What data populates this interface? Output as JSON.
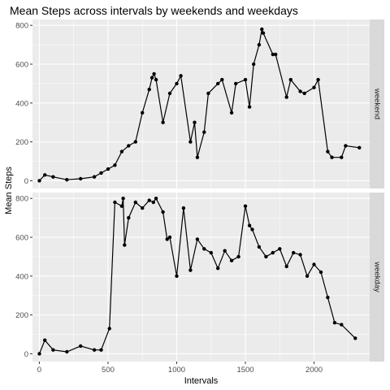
{
  "chart_data": {
    "type": "line",
    "title": "Mean Steps across intervals by weekends and weekdays",
    "xlabel": "Intervals",
    "ylabel": "Mean Steps",
    "xlim": [
      -50,
      2405
    ],
    "ylim": [
      -40,
      830
    ],
    "x_ticks": [
      0,
      500,
      1000,
      1500,
      2000
    ],
    "y_ticks": [
      0,
      200,
      400,
      600,
      800
    ],
    "grid": true,
    "markers": "points",
    "line_color": "#000000",
    "panel_background": "#ebebeb",
    "facet_strip_background": "#d9d9d9",
    "facets": [
      {
        "label": "weekend",
        "x": [
          0,
          40,
          100,
          200,
          300,
          400,
          450,
          500,
          550,
          600,
          650,
          700,
          750,
          800,
          820,
          835,
          850,
          900,
          950,
          1000,
          1030,
          1100,
          1130,
          1150,
          1200,
          1230,
          1300,
          1330,
          1400,
          1430,
          1500,
          1530,
          1560,
          1600,
          1620,
          1630,
          1700,
          1720,
          1800,
          1830,
          1900,
          1930,
          2000,
          2030,
          2100,
          2130,
          2200,
          2230,
          2330
        ],
        "values": [
          0,
          30,
          20,
          5,
          10,
          20,
          40,
          60,
          80,
          150,
          180,
          200,
          350,
          470,
          530,
          550,
          520,
          300,
          450,
          500,
          540,
          200,
          300,
          120,
          250,
          450,
          500,
          520,
          350,
          500,
          520,
          380,
          600,
          700,
          780,
          760,
          650,
          650,
          430,
          520,
          460,
          450,
          480,
          520,
          150,
          120,
          120,
          180,
          170
        ]
      },
      {
        "label": "weekday",
        "x": [
          0,
          40,
          100,
          200,
          300,
          400,
          450,
          510,
          550,
          600,
          610,
          620,
          650,
          700,
          750,
          800,
          830,
          850,
          900,
          930,
          950,
          1000,
          1050,
          1100,
          1150,
          1200,
          1250,
          1300,
          1350,
          1400,
          1450,
          1500,
          1530,
          1550,
          1600,
          1650,
          1700,
          1750,
          1800,
          1850,
          1900,
          1950,
          2000,
          2050,
          2100,
          2150,
          2200,
          2300
        ],
        "values": [
          0,
          70,
          20,
          10,
          40,
          20,
          20,
          130,
          780,
          760,
          800,
          560,
          700,
          780,
          750,
          790,
          780,
          800,
          730,
          590,
          600,
          400,
          750,
          430,
          590,
          540,
          520,
          440,
          530,
          480,
          500,
          760,
          660,
          640,
          550,
          500,
          520,
          540,
          450,
          520,
          510,
          400,
          460,
          420,
          290,
          160,
          150,
          80
        ]
      }
    ]
  }
}
